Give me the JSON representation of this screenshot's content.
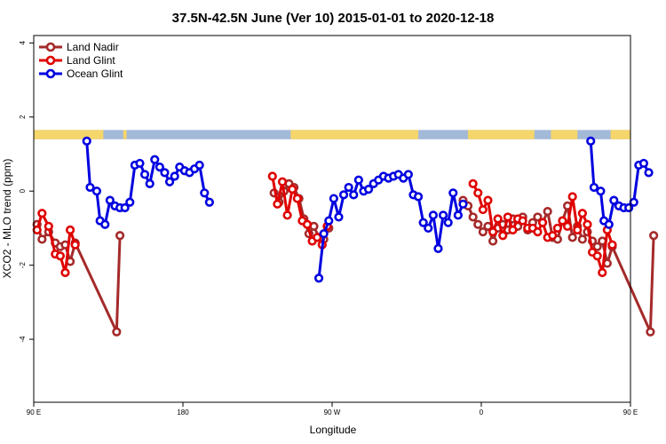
{
  "chart_data": {
    "type": "line",
    "title": "37.5N-42.5N June (Ver 10)   2015-01-01 to 2020-12-18",
    "xlabel": "Longitude",
    "ylabel": "XCO2 - MLO trend (ppm)",
    "xlim": [
      90,
      450
    ],
    "ylim": [
      -5.7,
      4.2
    ],
    "x_ticks": [
      {
        "value": 90,
        "label": "90 E"
      },
      {
        "value": 180,
        "label": "180"
      },
      {
        "value": 270,
        "label": "90 W"
      },
      {
        "value": 360,
        "label": "0"
      },
      {
        "value": 450,
        "label": "90 E"
      },
      {
        "value": 540,
        "label": "180"
      }
    ],
    "y_ticks": [
      {
        "value": 4,
        "label": "4"
      },
      {
        "value": 2,
        "label": "2"
      },
      {
        "value": 0,
        "label": "0"
      },
      {
        "value": -2,
        "label": "-2"
      },
      {
        "value": -4,
        "label": "-4"
      }
    ],
    "legend_position": "top-left",
    "land_ocean_strip": {
      "y_range": [
        1.4,
        1.65
      ],
      "land_color": "#f5d66b",
      "ocean_color": "#a3b9d8",
      "land_intervals": [
        [
          90,
          132
        ],
        [
          144,
          146
        ],
        [
          245,
          322
        ],
        [
          352,
          392
        ],
        [
          402,
          418
        ],
        [
          438,
          480
        ],
        [
          490,
          492
        ]
      ]
    },
    "series": [
      {
        "name": "Land Nadir",
        "color": "#a52a2a",
        "segments": [
          [
            [
              92,
              -0.9
            ],
            [
              95,
              -1.3
            ],
            [
              99,
              -1.1
            ],
            [
              103,
              -1.4
            ],
            [
              106,
              -1.5
            ],
            [
              109,
              -1.45
            ],
            [
              112,
              -1.9
            ],
            [
              115,
              -1.4
            ],
            [
              140,
              -3.8
            ],
            [
              142,
              -1.2
            ]
          ],
          [
            [
              235,
              -0.05
            ],
            [
              238,
              -0.3
            ],
            [
              241,
              0.0
            ],
            [
              244,
              0.2
            ],
            [
              247,
              0.1
            ],
            [
              250,
              -0.2
            ],
            [
              253,
              -0.75
            ],
            [
              256,
              -1.15
            ],
            [
              259,
              -0.95
            ],
            [
              262,
              -1.25
            ],
            [
              265,
              -1.3
            ],
            [
              268,
              -1.0
            ]
          ],
          [
            [
              349,
              -0.25
            ],
            [
              352,
              -0.4
            ],
            [
              355,
              -0.7
            ],
            [
              358,
              -0.9
            ],
            [
              361,
              -1.1
            ],
            [
              364,
              -0.95
            ],
            [
              367,
              -1.35
            ],
            [
              370,
              -1.0
            ],
            [
              373,
              -0.9
            ],
            [
              376,
              -1.05
            ],
            [
              379,
              -0.75
            ],
            [
              382,
              -0.95
            ],
            [
              385,
              -0.7
            ],
            [
              388,
              -1.05
            ],
            [
              391,
              -0.85
            ],
            [
              394,
              -0.7
            ],
            [
              397,
              -0.85
            ],
            [
              400,
              -0.55
            ],
            [
              403,
              -1.25
            ],
            [
              406,
              -1.3
            ],
            [
              409,
              -0.8
            ],
            [
              412,
              -0.4
            ],
            [
              415,
              -1.25
            ],
            [
              418,
              -0.95
            ],
            [
              421,
              -1.3
            ],
            [
              424,
              -1.1
            ],
            [
              427,
              -1.35
            ],
            [
              430,
              -1.5
            ],
            [
              433,
              -1.35
            ],
            [
              436,
              -1.95
            ],
            [
              439,
              -1.5
            ],
            [
              462,
              -3.8
            ],
            [
              464,
              -1.2
            ]
          ]
        ]
      },
      {
        "name": "Land Glint",
        "color": "#e00000",
        "segments": [
          [
            [
              92,
              -1.05
            ],
            [
              95,
              -0.6
            ],
            [
              99,
              -0.95
            ],
            [
              103,
              -1.7
            ],
            [
              106,
              -1.75
            ],
            [
              109,
              -2.2
            ],
            [
              112,
              -1.05
            ],
            [
              115,
              -1.45
            ]
          ],
          [
            [
              234,
              0.4
            ],
            [
              237,
              -0.35
            ],
            [
              240,
              0.25
            ],
            [
              243,
              -0.65
            ],
            [
              246,
              0.05
            ],
            [
              249,
              -0.2
            ],
            [
              252,
              -0.8
            ],
            [
              255,
              -0.9
            ],
            [
              258,
              -1.35
            ],
            [
              261,
              -1.25
            ],
            [
              264,
              -1.45
            ],
            [
              267,
              -0.95
            ]
          ],
          [
            [
              355,
              0.2
            ],
            [
              358,
              -0.05
            ],
            [
              361,
              -0.5
            ],
            [
              364,
              -0.25
            ],
            [
              367,
              -1.1
            ],
            [
              370,
              -0.75
            ],
            [
              373,
              -1.2
            ],
            [
              376,
              -0.7
            ],
            [
              379,
              -1.05
            ],
            [
              382,
              -0.75
            ],
            [
              385,
              -0.8
            ],
            [
              388,
              -1.0
            ],
            [
              391,
              -1.0
            ],
            [
              394,
              -1.1
            ],
            [
              397,
              -0.85
            ],
            [
              400,
              -1.25
            ],
            [
              403,
              -1.2
            ],
            [
              406,
              -1.0
            ],
            [
              409,
              -0.8
            ],
            [
              412,
              -0.95
            ],
            [
              415,
              -0.15
            ],
            [
              418,
              -1.05
            ],
            [
              421,
              -0.6
            ],
            [
              424,
              -0.9
            ],
            [
              427,
              -1.65
            ],
            [
              430,
              -1.75
            ],
            [
              433,
              -2.2
            ],
            [
              436,
              -1.05
            ],
            [
              439,
              -1.45
            ]
          ]
        ]
      },
      {
        "name": "Ocean Glint",
        "color": "#0000e0",
        "segments": [
          [
            [
              122,
              1.35
            ],
            [
              124,
              0.1
            ],
            [
              128,
              0.0
            ],
            [
              130,
              -0.8
            ],
            [
              133,
              -0.9
            ],
            [
              136,
              -0.25
            ],
            [
              139,
              -0.4
            ],
            [
              142,
              -0.45
            ],
            [
              145,
              -0.45
            ],
            [
              148,
              -0.3
            ],
            [
              151,
              0.7
            ],
            [
              154,
              0.75
            ],
            [
              157,
              0.45
            ],
            [
              160,
              0.2
            ],
            [
              163,
              0.85
            ],
            [
              166,
              0.65
            ],
            [
              169,
              0.5
            ],
            [
              172,
              0.25
            ],
            [
              175,
              0.4
            ],
            [
              178,
              0.65
            ],
            [
              181,
              0.55
            ],
            [
              184,
              0.5
            ],
            [
              187,
              0.6
            ],
            [
              190,
              0.7
            ],
            [
              193,
              -0.05
            ],
            [
              196,
              -0.3
            ]
          ],
          [
            [
              262,
              -2.35
            ],
            [
              265,
              -1.15
            ],
            [
              268,
              -0.8
            ],
            [
              271,
              -0.2
            ],
            [
              274,
              -0.7
            ],
            [
              277,
              -0.1
            ],
            [
              280,
              0.1
            ],
            [
              283,
              -0.1
            ],
            [
              286,
              0.3
            ],
            [
              289,
              0.0
            ],
            [
              292,
              0.05
            ],
            [
              295,
              0.2
            ],
            [
              298,
              0.3
            ],
            [
              301,
              0.4
            ],
            [
              304,
              0.35
            ],
            [
              307,
              0.4
            ],
            [
              310,
              0.45
            ],
            [
              313,
              0.35
            ],
            [
              316,
              0.45
            ],
            [
              319,
              -0.1
            ],
            [
              322,
              -0.15
            ],
            [
              325,
              -0.85
            ],
            [
              328,
              -1.0
            ],
            [
              331,
              -0.65
            ],
            [
              334,
              -1.55
            ],
            [
              337,
              -0.65
            ],
            [
              340,
              -0.85
            ],
            [
              343,
              -0.05
            ],
            [
              346,
              -0.65
            ],
            [
              349,
              -0.35
            ]
          ],
          [
            [
              426,
              1.35
            ],
            [
              428,
              0.1
            ],
            [
              432,
              0.0
            ],
            [
              434,
              -0.8
            ],
            [
              437,
              -0.9
            ],
            [
              440,
              -0.25
            ],
            [
              443,
              -0.4
            ],
            [
              446,
              -0.45
            ],
            [
              449,
              -0.45
            ],
            [
              452,
              -0.3
            ],
            [
              455,
              0.7
            ],
            [
              458,
              0.75
            ],
            [
              461,
              0.5
            ]
          ]
        ]
      }
    ]
  }
}
